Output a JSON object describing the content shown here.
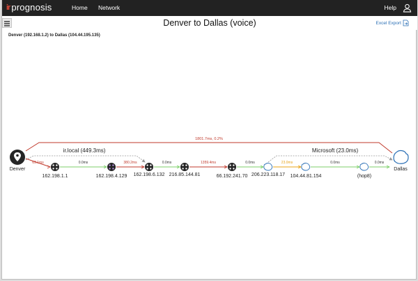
{
  "app": {
    "logo_mark": "ir",
    "logo_text": "prognosis"
  },
  "nav": {
    "home": "Home",
    "network": "Network",
    "help": "Help"
  },
  "page": {
    "title": "Denver to Dallas (voice)",
    "export_label": "Excel Export",
    "route_label": "Denver (192.168.1.2) to Dallas (104.44.195.135)"
  },
  "endpoints": {
    "source": "Denver",
    "destination": "Dallas"
  },
  "summary": {
    "top_path_label": "1801.7ms, 0.2%"
  },
  "groups": [
    {
      "label": "ir.local (449.3ms)"
    },
    {
      "label": "Microsoft (23.0ms)"
    }
  ],
  "hops": [
    {
      "label": "162.198.1.1",
      "type": "router"
    },
    {
      "label": "162.198.4.129",
      "type": "router"
    },
    {
      "label": "162.198.6.132",
      "type": "router"
    },
    {
      "label": "216.85.144.81",
      "type": "router"
    },
    {
      "label": "66.192.241.70",
      "type": "router"
    },
    {
      "label": "206.223.118.17",
      "type": "cloud"
    },
    {
      "label": "104.44.81.154",
      "type": "cloud"
    },
    {
      "label": "(hop8)",
      "type": "cloud"
    }
  ],
  "segments": [
    {
      "label": "69.1ms",
      "status": "red"
    },
    {
      "label": "0.0ms",
      "status": "green"
    },
    {
      "label": "380.2ms",
      "status": "red"
    },
    {
      "label": "0.0ms",
      "status": "green"
    },
    {
      "label": "1359.4ms",
      "status": "red"
    },
    {
      "label": "0.0ms",
      "status": "green"
    },
    {
      "label": "23.0ms",
      "status": "amber"
    },
    {
      "label": "0.0ms",
      "status": "green"
    },
    {
      "label": "0.0ms",
      "status": "green"
    }
  ],
  "colors": {
    "red": "#c0392b",
    "green": "#7ccf6a",
    "amber": "#e8a317",
    "accent": "#2a6fb5",
    "node": "#262626"
  }
}
